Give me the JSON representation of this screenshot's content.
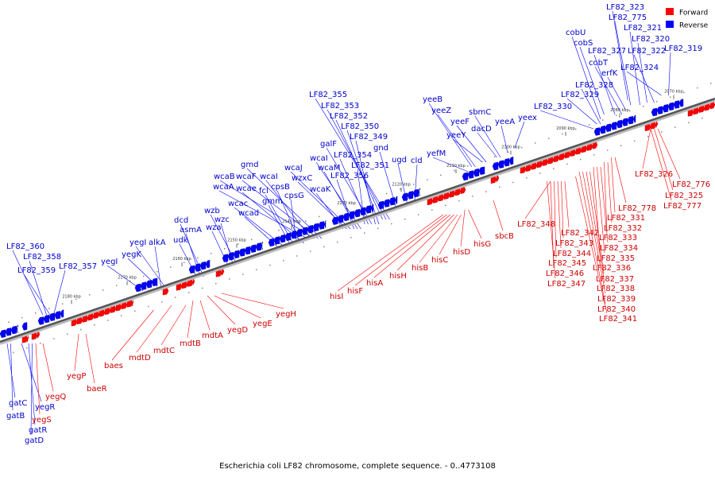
{
  "caption": "Escherichia coli LF82 chromosome, complete sequence. - 0..4773108",
  "legend": [
    {
      "label": "Forward",
      "color": "#ff0000"
    },
    {
      "label": "Reverse",
      "color": "#0000ff"
    }
  ],
  "colors": {
    "forward": "#ff0000",
    "reverse": "#0000ff",
    "forward_text": "#cc0000",
    "reverse_text": "#0000cc",
    "backbone": "#555555"
  },
  "ticks": [
    "2070 kbp",
    "2080 kbp",
    "2090 kbp",
    "2100 kbp",
    "2110 kbp",
    "2120 kbp",
    "2130 kbp",
    "2140 kbp",
    "2150 kbp",
    "2160 kbp",
    "2170 kbp",
    "2180 kbp"
  ],
  "reverse_labels": [
    "LF82_323",
    "LF82_775",
    "LF82_321",
    "LF82_320",
    "LF82_322",
    "LF82_319",
    "LF82_324",
    "cobU",
    "cobS",
    "LF82_327",
    "cobT",
    "erfK",
    "LF82_328",
    "LF82_329",
    "LF82_330",
    "yeex",
    "yeeA",
    "sbmC",
    "dacD",
    "yeeF",
    "yeeY",
    "yeeZ",
    "yeeB",
    "yefM",
    "cld",
    "ugd",
    "gnd",
    "LF82_355",
    "LF82_353",
    "LF82_352",
    "LF82_350",
    "LF82_349",
    "galF",
    "LF82_354",
    "LF82_351",
    "wcaI",
    "wcaM",
    "LF82_356",
    "wcaJ",
    "wzxC",
    "wcaK",
    "gmd",
    "wcaF",
    "wcaB",
    "wcaI",
    "wcaA",
    "wcae",
    "cpsB",
    "cpsG",
    "fcl",
    "gmm",
    "wcac",
    "wcad",
    "wzb",
    "wzc",
    "wza",
    "dcd",
    "asmA",
    "udk",
    "yegI",
    "alkA",
    "yegK",
    "yegI",
    "LF82_360",
    "LF82_358",
    "LF82_359",
    "LF82_357",
    "gatC",
    "gatB",
    "yegR",
    "gatR",
    "gatD"
  ],
  "forward_labels": [
    "LF82_326",
    "LF82_776",
    "LF82_325",
    "LF82_777",
    "LF82_778",
    "LF82_331",
    "LF82_332",
    "LF82_333",
    "LF82_334",
    "LF82_335",
    "LF82_336",
    "LF82_337",
    "LF82_338",
    "LF82_339",
    "LF82_340",
    "LF82_341",
    "LF82_348",
    "LF82_342",
    "LF82_343",
    "LF82_344",
    "LF82_345",
    "LF82_346",
    "LF82_347",
    "sbcB",
    "hisG",
    "hisD",
    "hisC",
    "hisB",
    "hisH",
    "hisA",
    "hisF",
    "hisI",
    "yegH",
    "yegE",
    "yegD",
    "mdtA",
    "mdtB",
    "mdtC",
    "mdtD",
    "baes",
    "baeR",
    "yegP",
    "yegQ",
    "yegS"
  ]
}
